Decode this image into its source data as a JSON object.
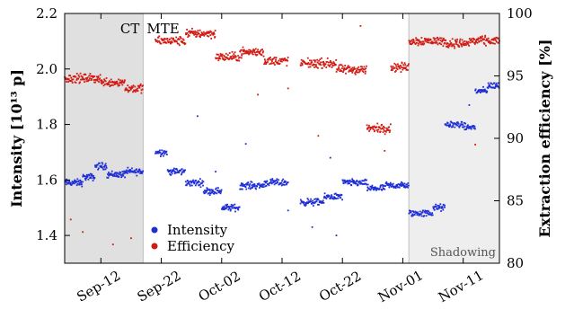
{
  "chart_data": {
    "type": "scatter",
    "x_axis": {
      "type": "date",
      "range": [
        "2018-09-06",
        "2018-11-17"
      ],
      "ticks": [
        {
          "date": "2018-09-12",
          "label": "Sep-12"
        },
        {
          "date": "2018-09-22",
          "label": "Sep-22"
        },
        {
          "date": "2018-10-02",
          "label": "Oct-02"
        },
        {
          "date": "2018-10-12",
          "label": "Oct-12"
        },
        {
          "date": "2018-10-22",
          "label": "Oct-22"
        },
        {
          "date": "2018-11-01",
          "label": "Nov-01"
        },
        {
          "date": "2018-11-11",
          "label": "Nov-11"
        }
      ]
    },
    "y_left": {
      "label": "Intensity [10¹³ p]",
      "range": [
        1.3,
        2.2
      ],
      "ticks": [
        {
          "value": 1.4,
          "label": "1.4"
        },
        {
          "value": 1.6,
          "label": "1.6"
        },
        {
          "value": 1.8,
          "label": "1.8"
        },
        {
          "value": 2.0,
          "label": "2.0"
        },
        {
          "value": 2.2,
          "label": "2.2"
        }
      ]
    },
    "y_right": {
      "label": "Extraction efficiency [%]",
      "range": [
        80,
        100
      ],
      "ticks": [
        {
          "value": 80,
          "label": "80"
        },
        {
          "value": 85,
          "label": "85"
        },
        {
          "value": 90,
          "label": "90"
        },
        {
          "value": 95,
          "label": "95"
        },
        {
          "value": 100,
          "label": "100"
        }
      ]
    },
    "regions": [
      {
        "label": "CT",
        "start": "2018-09-06",
        "end": "2018-09-19",
        "shaded": true,
        "color": "#e0e0e0"
      },
      {
        "label": "MTE",
        "start": "2018-09-19",
        "end": "2018-11-02",
        "shaded": false,
        "color": "#ffffff"
      },
      {
        "label": "Shadowing",
        "start": "2018-11-02",
        "end": "2018-11-17",
        "shaded": true,
        "color": "#eeeeee"
      }
    ],
    "series": [
      {
        "name": "Intensity",
        "axis": "left",
        "color": "#1f2fd6",
        "segments": [
          {
            "start": "2018-09-06",
            "end": "2018-09-09",
            "y": 1.59
          },
          {
            "start": "2018-09-09",
            "end": "2018-09-11",
            "y": 1.61
          },
          {
            "start": "2018-09-11",
            "end": "2018-09-13",
            "y": 1.65
          },
          {
            "start": "2018-09-13",
            "end": "2018-09-16",
            "y": 1.62
          },
          {
            "start": "2018-09-16",
            "end": "2018-09-19",
            "y": 1.63
          },
          {
            "start": "2018-09-21",
            "end": "2018-09-23",
            "y": 1.7
          },
          {
            "start": "2018-09-23",
            "end": "2018-09-26",
            "y": 1.63
          },
          {
            "start": "2018-09-26",
            "end": "2018-09-29",
            "y": 1.59
          },
          {
            "start": "2018-09-29",
            "end": "2018-10-02",
            "y": 1.56
          },
          {
            "start": "2018-10-02",
            "end": "2018-10-05",
            "y": 1.5
          },
          {
            "start": "2018-10-05",
            "end": "2018-10-09",
            "y": 1.58
          },
          {
            "start": "2018-10-09",
            "end": "2018-10-13",
            "y": 1.59
          },
          {
            "start": "2018-10-15",
            "end": "2018-10-19",
            "y": 1.52
          },
          {
            "start": "2018-10-19",
            "end": "2018-10-22",
            "y": 1.54
          },
          {
            "start": "2018-10-22",
            "end": "2018-10-26",
            "y": 1.59
          },
          {
            "start": "2018-10-26",
            "end": "2018-10-29",
            "y": 1.57
          },
          {
            "start": "2018-10-29",
            "end": "2018-11-02",
            "y": 1.58
          },
          {
            "start": "2018-11-02",
            "end": "2018-11-06",
            "y": 1.48
          },
          {
            "start": "2018-11-06",
            "end": "2018-11-08",
            "y": 1.5
          },
          {
            "start": "2018-11-08",
            "end": "2018-11-11",
            "y": 1.8
          },
          {
            "start": "2018-11-11",
            "end": "2018-11-13",
            "y": 1.79
          },
          {
            "start": "2018-11-13",
            "end": "2018-11-15",
            "y": 1.92
          },
          {
            "start": "2018-11-15",
            "end": "2018-11-17",
            "y": 1.94
          }
        ],
        "outliers": [
          {
            "x": "2018-09-28",
            "y": 1.83
          },
          {
            "x": "2018-10-01",
            "y": 1.63
          },
          {
            "x": "2018-10-06",
            "y": 1.73
          },
          {
            "x": "2018-10-13",
            "y": 1.49
          },
          {
            "x": "2018-10-17",
            "y": 1.43
          },
          {
            "x": "2018-10-20",
            "y": 1.68
          },
          {
            "x": "2018-10-21",
            "y": 1.4
          },
          {
            "x": "2018-11-12",
            "y": 1.87
          }
        ]
      },
      {
        "name": "Efficiency",
        "axis": "right",
        "color": "#d11a12",
        "segments": [
          {
            "start": "2018-09-06",
            "end": "2018-09-12",
            "y": 94.8
          },
          {
            "start": "2018-09-12",
            "end": "2018-09-16",
            "y": 94.5
          },
          {
            "start": "2018-09-16",
            "end": "2018-09-19",
            "y": 94.0
          },
          {
            "start": "2018-09-21",
            "end": "2018-09-26",
            "y": 97.8
          },
          {
            "start": "2018-09-26",
            "end": "2018-10-01",
            "y": 98.4
          },
          {
            "start": "2018-10-01",
            "end": "2018-10-05",
            "y": 96.5
          },
          {
            "start": "2018-10-05",
            "end": "2018-10-09",
            "y": 96.9
          },
          {
            "start": "2018-10-09",
            "end": "2018-10-13",
            "y": 96.2
          },
          {
            "start": "2018-10-15",
            "end": "2018-10-21",
            "y": 96.0
          },
          {
            "start": "2018-10-21",
            "end": "2018-10-26",
            "y": 95.5
          },
          {
            "start": "2018-10-26",
            "end": "2018-10-30",
            "y": 90.8
          },
          {
            "start": "2018-10-30",
            "end": "2018-11-02",
            "y": 95.7
          },
          {
            "start": "2018-11-02",
            "end": "2018-11-08",
            "y": 97.8
          },
          {
            "start": "2018-11-08",
            "end": "2018-11-12",
            "y": 97.6
          },
          {
            "start": "2018-11-12",
            "end": "2018-11-17",
            "y": 97.8
          }
        ],
        "outliers": [
          {
            "x": "2018-09-07",
            "y": 83.5
          },
          {
            "x": "2018-09-09",
            "y": 82.5
          },
          {
            "x": "2018-09-14",
            "y": 81.5
          },
          {
            "x": "2018-09-17",
            "y": 82.0
          },
          {
            "x": "2018-10-08",
            "y": 93.5
          },
          {
            "x": "2018-10-13",
            "y": 94.0
          },
          {
            "x": "2018-10-18",
            "y": 90.2
          },
          {
            "x": "2018-10-25",
            "y": 99.0
          },
          {
            "x": "2018-10-29",
            "y": 89.0
          },
          {
            "x": "2018-11-13",
            "y": 89.5
          }
        ]
      }
    ],
    "legend": {
      "placement": "bottom-left",
      "entries": [
        {
          "label": "Intensity",
          "color": "#1f2fd6"
        },
        {
          "label": "Efficiency",
          "color": "#d11a12"
        }
      ]
    }
  }
}
